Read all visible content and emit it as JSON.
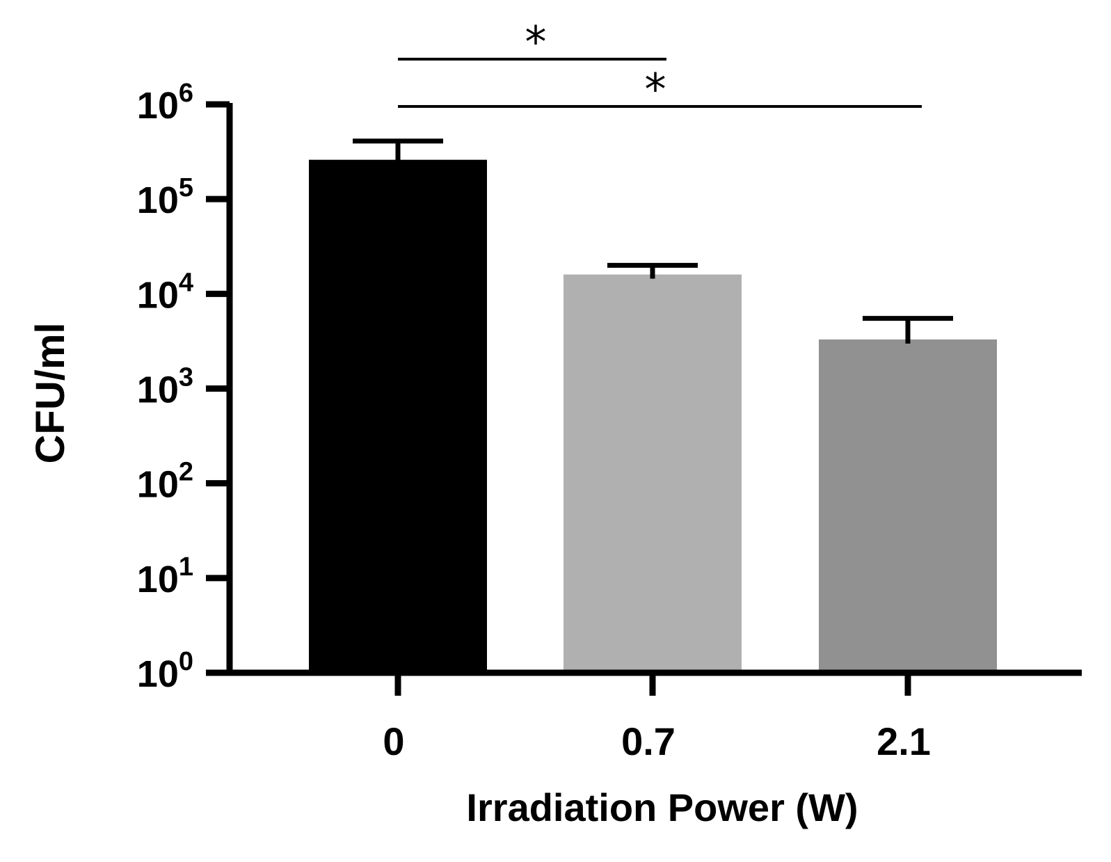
{
  "chart_data": {
    "type": "bar",
    "title": "",
    "xlabel": "Irradiation Power (W)",
    "ylabel": "CFU/ml",
    "yscale": "log",
    "ylim": [
      1,
      1000000
    ],
    "y_ticks": [
      {
        "value": 1,
        "base": "10",
        "exp": "0"
      },
      {
        "value": 10,
        "base": "10",
        "exp": "1"
      },
      {
        "value": 100,
        "base": "10",
        "exp": "2"
      },
      {
        "value": 1000,
        "base": "10",
        "exp": "3"
      },
      {
        "value": 10000,
        "base": "10",
        "exp": "4"
      },
      {
        "value": 100000,
        "base": "10",
        "exp": "5"
      },
      {
        "value": 1000000,
        "base": "10",
        "exp": "6"
      }
    ],
    "categories": [
      "0",
      "0.7",
      "2.1"
    ],
    "values": [
      260000,
      16000,
      3300
    ],
    "error_upper": [
      410000,
      20000,
      5500
    ],
    "colors": [
      "#000000",
      "#b0b0b0",
      "#919191"
    ],
    "significance": [
      {
        "from": 0,
        "to": 1,
        "label": "*"
      },
      {
        "from": 0,
        "to": 2,
        "label": "*"
      }
    ]
  }
}
